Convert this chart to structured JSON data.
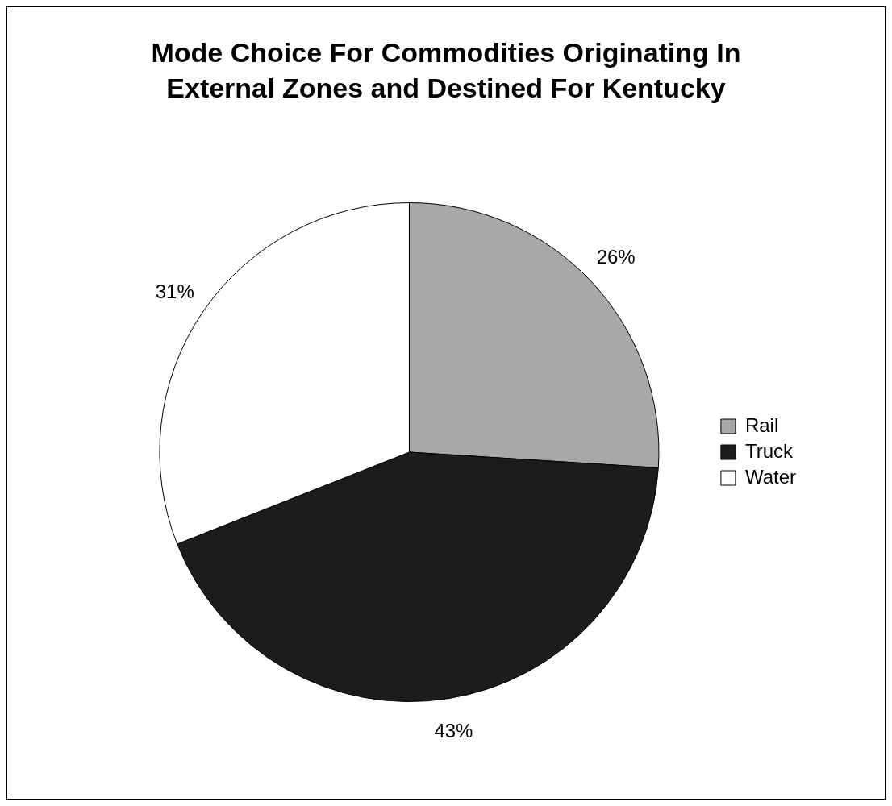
{
  "chart_data": {
    "type": "pie",
    "title": "Mode Choice For Commodities Originating In External Zones and Destined For Kentucky",
    "categories": [
      "Rail",
      "Truck",
      "Water"
    ],
    "values": [
      26,
      43,
      31
    ],
    "value_labels": [
      "26%",
      "43%",
      "31%"
    ],
    "colors": [
      "#a8a8a8",
      "#1c1c1c",
      "#ffffff"
    ],
    "legend": "right"
  }
}
